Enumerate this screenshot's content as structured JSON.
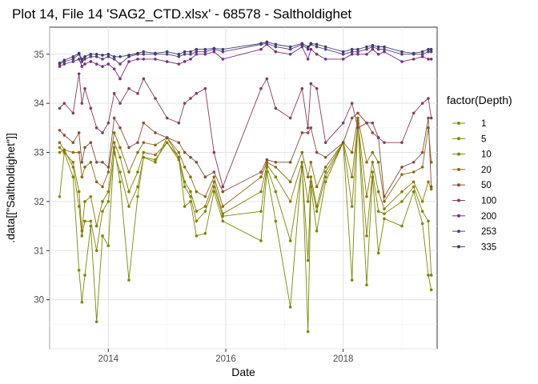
{
  "chart_data": {
    "type": "line",
    "title": "Plot 14, File 14 'SAG2_CTD.xlsx' - 68578  -  Saltholdighet",
    "xlabel": "Date",
    "ylabel": ".data[[\"Saltholdighet\"]]",
    "x_ticks": [
      "2014",
      "2016",
      "2018"
    ],
    "y_ticks": [
      "30",
      "31",
      "32",
      "33",
      "34",
      "35"
    ],
    "xlim": [
      2013.0,
      2019.6
    ],
    "ylim": [
      29.0,
      35.55
    ],
    "grid": true,
    "legend": {
      "title": "factor(Depth)",
      "position": "right"
    },
    "series": [
      {
        "name": "1",
        "color": "#7a8a00",
        "x": [
          2013.17,
          2013.25,
          2013.4,
          2013.5,
          2013.55,
          2013.6,
          2013.7,
          2013.8,
          2013.9,
          2014.0,
          2014.1,
          2014.2,
          2014.35,
          2014.5,
          2014.6,
          2014.8,
          2015.0,
          2015.2,
          2015.3,
          2015.4,
          2015.5,
          2015.65,
          2015.8,
          2015.95,
          2016.6,
          2016.7,
          2016.85,
          2017.1,
          2017.3,
          2017.4,
          2017.45,
          2017.55,
          2017.7,
          2018.0,
          2018.15,
          2018.25,
          2018.4,
          2018.5,
          2018.6,
          2018.7,
          2019.0,
          2019.2,
          2019.35,
          2019.45,
          2019.5
        ],
        "values": [
          32.1,
          33.0,
          32.5,
          30.6,
          29.95,
          30.5,
          31.5,
          29.55,
          31.3,
          31.1,
          33.1,
          32.4,
          30.4,
          32.1,
          32.9,
          32.8,
          33.3,
          32.9,
          31.9,
          32.0,
          31.3,
          31.35,
          32.2,
          31.6,
          31.2,
          32.6,
          31.6,
          29.85,
          32.8,
          29.35,
          32.3,
          31.4,
          32.4,
          33.2,
          30.4,
          33.65,
          30.3,
          32.5,
          30.95,
          31.65,
          31.5,
          32.2,
          31.55,
          30.5,
          30.2
        ]
      },
      {
        "name": "5",
        "color": "#808500",
        "x": [
          2013.17,
          2013.25,
          2013.4,
          2013.5,
          2013.55,
          2013.6,
          2013.7,
          2013.8,
          2013.9,
          2014.0,
          2014.1,
          2014.2,
          2014.35,
          2014.5,
          2014.6,
          2014.8,
          2015.0,
          2015.2,
          2015.3,
          2015.4,
          2015.5,
          2015.65,
          2015.8,
          2015.95,
          2016.6,
          2016.7,
          2016.85,
          2017.1,
          2017.3,
          2017.4,
          2017.45,
          2017.55,
          2017.7,
          2018.0,
          2018.15,
          2018.25,
          2018.4,
          2018.5,
          2018.6,
          2018.7,
          2019.0,
          2019.2,
          2019.35,
          2019.45,
          2019.5
        ],
        "values": [
          33.0,
          33.05,
          32.7,
          31.9,
          31.3,
          31.6,
          31.6,
          31.0,
          31.8,
          32.0,
          33.0,
          32.6,
          31.9,
          32.3,
          32.9,
          32.85,
          33.2,
          32.85,
          32.3,
          32.1,
          31.6,
          31.8,
          32.3,
          31.7,
          31.8,
          32.7,
          32.2,
          31.2,
          32.7,
          30.8,
          32.4,
          31.8,
          32.5,
          33.2,
          31.9,
          33.6,
          31.3,
          32.6,
          31.8,
          31.75,
          32.0,
          32.3,
          31.8,
          31.6,
          30.5
        ]
      },
      {
        "name": "10",
        "color": "#877d00",
        "x": [
          2013.17,
          2013.25,
          2013.4,
          2013.5,
          2013.55,
          2013.6,
          2013.7,
          2013.8,
          2013.9,
          2014.0,
          2014.1,
          2014.2,
          2014.35,
          2014.5,
          2014.6,
          2014.8,
          2015.0,
          2015.2,
          2015.3,
          2015.4,
          2015.5,
          2015.65,
          2015.8,
          2015.95,
          2016.6,
          2016.7,
          2016.85,
          2017.1,
          2017.3,
          2017.4,
          2017.45,
          2017.55,
          2017.7,
          2018.0,
          2018.15,
          2018.25,
          2018.4,
          2018.5,
          2018.6,
          2018.7,
          2019.0,
          2019.2,
          2019.35,
          2019.45,
          2019.5
        ],
        "values": [
          33.1,
          33.0,
          32.8,
          32.2,
          31.4,
          32.0,
          32.1,
          31.5,
          32.0,
          32.2,
          33.2,
          32.9,
          32.2,
          32.6,
          33.0,
          32.95,
          33.2,
          32.9,
          32.4,
          32.2,
          31.8,
          31.9,
          32.4,
          31.75,
          32.2,
          32.75,
          32.5,
          32.0,
          32.8,
          32.0,
          32.5,
          31.9,
          32.6,
          33.2,
          32.5,
          33.6,
          32.1,
          32.8,
          32.2,
          31.85,
          32.2,
          32.4,
          32.0,
          32.4,
          32.25
        ]
      },
      {
        "name": "20",
        "color": "#8d6a10",
        "x": [
          2013.17,
          2013.25,
          2013.4,
          2013.5,
          2013.55,
          2013.6,
          2013.7,
          2013.8,
          2013.9,
          2014.0,
          2014.1,
          2014.2,
          2014.35,
          2014.5,
          2014.6,
          2014.8,
          2015.0,
          2015.2,
          2015.3,
          2015.4,
          2015.5,
          2015.65,
          2015.8,
          2015.95,
          2016.6,
          2016.7,
          2016.85,
          2017.1,
          2017.3,
          2017.4,
          2017.45,
          2017.55,
          2017.7,
          2018.0,
          2018.15,
          2018.25,
          2018.4,
          2018.5,
          2018.6,
          2018.7,
          2019.0,
          2019.2,
          2019.35,
          2019.45,
          2019.5
        ],
        "values": [
          33.2,
          33.05,
          33.0,
          33.0,
          32.5,
          32.7,
          32.8,
          32.4,
          32.3,
          32.6,
          33.4,
          33.1,
          32.6,
          33.0,
          33.2,
          33.15,
          33.3,
          33.0,
          32.7,
          32.5,
          32.2,
          32.1,
          32.5,
          31.9,
          32.5,
          32.8,
          32.7,
          32.4,
          33.0,
          32.5,
          32.8,
          32.3,
          32.7,
          33.2,
          33.0,
          33.7,
          32.8,
          33.0,
          32.8,
          32.0,
          32.55,
          32.6,
          32.7,
          33.5,
          32.8
        ]
      },
      {
        "name": "50",
        "color": "#8a4e3a",
        "x": [
          2013.17,
          2013.25,
          2013.4,
          2013.5,
          2013.55,
          2013.6,
          2013.7,
          2013.8,
          2013.9,
          2014.0,
          2014.1,
          2014.2,
          2014.35,
          2014.5,
          2014.6,
          2014.8,
          2015.0,
          2015.2,
          2015.3,
          2015.4,
          2015.5,
          2015.65,
          2015.8,
          2015.95,
          2016.6,
          2016.7,
          2016.85,
          2017.1,
          2017.3,
          2017.4,
          2017.45,
          2017.55,
          2017.7,
          2018.0,
          2018.15,
          2018.25,
          2018.4,
          2018.5,
          2018.6,
          2018.7,
          2019.0,
          2019.2,
          2019.35,
          2019.45,
          2019.5
        ],
        "values": [
          33.45,
          33.35,
          33.2,
          33.4,
          32.8,
          33.1,
          33.2,
          32.8,
          32.8,
          32.7,
          33.7,
          33.5,
          33.1,
          33.2,
          33.6,
          33.4,
          33.3,
          33.2,
          33.0,
          32.9,
          32.8,
          32.5,
          32.6,
          32.2,
          32.6,
          32.85,
          32.8,
          32.8,
          33.4,
          33.4,
          33.5,
          33.0,
          32.9,
          33.2,
          33.7,
          33.8,
          33.6,
          33.4,
          33.3,
          32.1,
          32.7,
          32.8,
          33.0,
          33.7,
          32.3
        ]
      },
      {
        "name": "100",
        "color": "#8a3a5f",
        "x": [
          2013.17,
          2013.25,
          2013.4,
          2013.5,
          2013.55,
          2013.6,
          2013.7,
          2013.8,
          2013.9,
          2014.0,
          2014.1,
          2014.2,
          2014.35,
          2014.5,
          2014.6,
          2014.8,
          2015.0,
          2015.2,
          2015.3,
          2015.4,
          2015.5,
          2015.65,
          2015.8,
          2015.95,
          2016.6,
          2016.7,
          2016.85,
          2017.1,
          2017.3,
          2017.4,
          2017.45,
          2017.55,
          2017.7,
          2018.0,
          2018.15,
          2018.25,
          2018.4,
          2018.5,
          2018.6,
          2018.7,
          2019.0,
          2019.2,
          2019.35,
          2019.45,
          2019.5
        ],
        "values": [
          33.9,
          34.0,
          33.8,
          34.6,
          34.0,
          34.3,
          33.9,
          33.5,
          33.4,
          33.6,
          34.2,
          34.0,
          34.3,
          34.2,
          34.5,
          34.1,
          33.7,
          33.6,
          34.0,
          34.1,
          34.2,
          34.3,
          33.0,
          32.3,
          34.3,
          34.5,
          33.9,
          33.7,
          34.3,
          33.5,
          34.4,
          34.3,
          33.2,
          33.6,
          34.0,
          33.5,
          33.6,
          33.6,
          33.3,
          33.2,
          33.2,
          33.8,
          34.0,
          34.1,
          33.7
        ]
      },
      {
        "name": "200",
        "color": "#7a2f7e",
        "x": [
          2013.17,
          2013.25,
          2013.4,
          2013.5,
          2013.55,
          2013.6,
          2013.7,
          2013.8,
          2013.9,
          2014.0,
          2014.1,
          2014.2,
          2014.35,
          2014.5,
          2014.6,
          2014.8,
          2015.0,
          2015.2,
          2015.3,
          2015.4,
          2015.5,
          2015.65,
          2015.8,
          2015.95,
          2016.6,
          2016.7,
          2016.85,
          2017.1,
          2017.3,
          2017.4,
          2017.45,
          2017.55,
          2017.7,
          2018.0,
          2018.15,
          2018.25,
          2018.4,
          2018.5,
          2018.6,
          2018.7,
          2019.0,
          2019.2,
          2019.35,
          2019.45,
          2019.5
        ],
        "values": [
          34.75,
          34.8,
          34.85,
          34.9,
          34.75,
          34.8,
          34.85,
          34.8,
          34.75,
          34.8,
          34.7,
          34.5,
          34.85,
          34.9,
          34.9,
          34.9,
          34.85,
          34.8,
          34.85,
          34.9,
          35.0,
          35.0,
          35.05,
          34.9,
          35.1,
          35.2,
          35.05,
          35.0,
          35.15,
          34.9,
          35.1,
          35.0,
          34.9,
          34.9,
          35.0,
          35.0,
          35.0,
          35.1,
          35.0,
          35.05,
          34.85,
          34.9,
          34.95,
          34.9,
          34.9
        ]
      },
      {
        "name": "253",
        "color": "#5a3b86",
        "x": [
          2013.17,
          2013.25,
          2013.4,
          2013.5,
          2013.55,
          2013.6,
          2013.7,
          2013.8,
          2013.9,
          2014.0,
          2014.1,
          2014.2,
          2014.35,
          2014.5,
          2014.6,
          2014.8,
          2015.0,
          2015.2,
          2015.3,
          2015.4,
          2015.5,
          2015.65,
          2015.8,
          2015.95,
          2016.6,
          2016.7,
          2016.85,
          2017.1,
          2017.3,
          2017.4,
          2017.45,
          2017.55,
          2017.7,
          2018.0,
          2018.15,
          2018.25,
          2018.4,
          2018.5,
          2018.6,
          2018.7,
          2019.0,
          2019.2,
          2019.35,
          2019.45,
          2019.5
        ],
        "values": [
          34.8,
          34.85,
          34.9,
          35.0,
          34.85,
          34.9,
          34.95,
          34.95,
          34.9,
          34.95,
          34.9,
          34.8,
          34.95,
          35.0,
          35.0,
          35.0,
          35.0,
          34.95,
          35.0,
          35.0,
          35.05,
          35.05,
          35.1,
          35.05,
          35.2,
          35.22,
          35.15,
          35.1,
          35.2,
          35.1,
          35.2,
          35.15,
          35.1,
          35.0,
          35.05,
          35.05,
          35.1,
          35.15,
          35.1,
          35.1,
          35.0,
          35.0,
          35.0,
          35.05,
          35.05
        ]
      },
      {
        "name": "335",
        "color": "#3b3f6e",
        "x": [
          2013.17,
          2013.25,
          2013.4,
          2013.5,
          2013.55,
          2013.6,
          2013.7,
          2013.8,
          2013.9,
          2014.0,
          2014.1,
          2014.2,
          2014.35,
          2014.5,
          2014.6,
          2014.8,
          2015.0,
          2015.2,
          2015.3,
          2015.4,
          2015.5,
          2015.65,
          2015.8,
          2015.95,
          2016.6,
          2016.7,
          2016.85,
          2017.1,
          2017.3,
          2017.4,
          2017.45,
          2017.55,
          2017.7,
          2018.0,
          2018.15,
          2018.25,
          2018.4,
          2018.5,
          2018.6,
          2018.7,
          2019.0,
          2019.2,
          2019.35,
          2019.45,
          2019.5
        ],
        "values": [
          34.82,
          34.88,
          34.95,
          35.02,
          34.9,
          34.95,
          35.0,
          35.0,
          34.98,
          35.0,
          34.95,
          34.95,
          34.98,
          35.02,
          35.05,
          35.02,
          35.05,
          35.0,
          35.05,
          35.05,
          35.1,
          35.1,
          35.12,
          35.1,
          35.22,
          35.25,
          35.2,
          35.15,
          35.22,
          35.15,
          35.22,
          35.2,
          35.15,
          35.05,
          35.1,
          35.1,
          35.15,
          35.18,
          35.15,
          35.15,
          35.05,
          35.02,
          35.05,
          35.1,
          35.1
        ]
      }
    ]
  }
}
